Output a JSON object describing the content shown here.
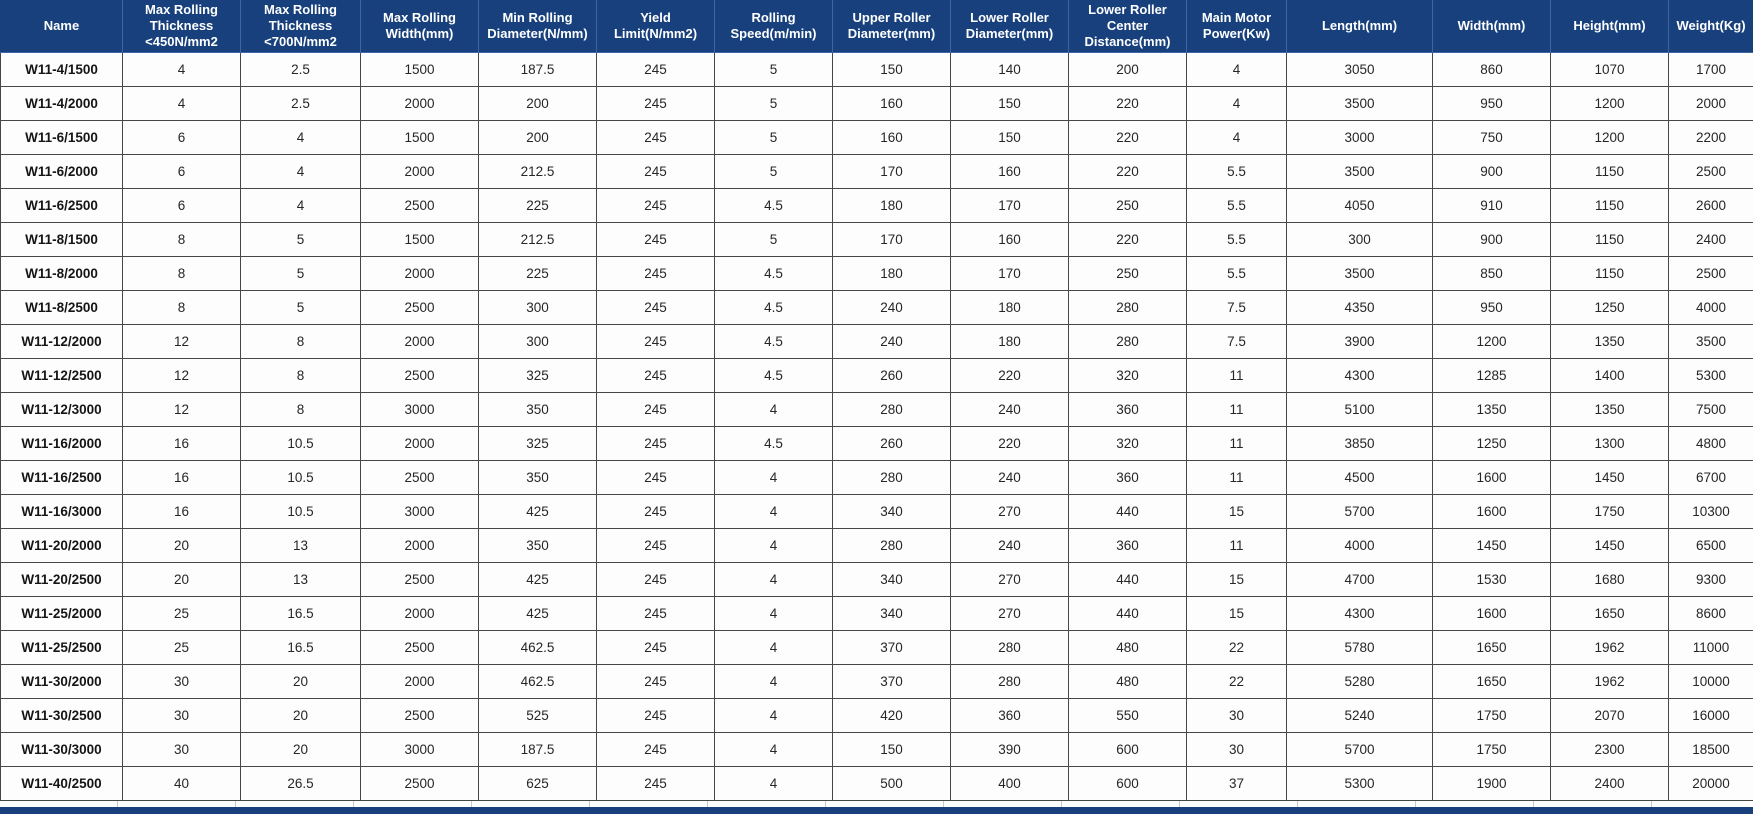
{
  "table": {
    "headers": [
      "Name",
      "Max Rolling Thickness <450N/mm2",
      "Max Rolling Thickness <700N/mm2",
      "Max Rolling Width(mm)",
      "Min Rolling Diameter(N/mm)",
      "Yield Limit(N/mm2)",
      "Rolling Speed(m/min)",
      "Upper Roller Diameter(mm)",
      "Lower Roller Diameter(mm)",
      "Lower Roller Center Distance(mm)",
      "Main Motor Power(Kw)",
      "Length(mm)",
      "Width(mm)",
      "Height(mm)",
      "Weight(Kg)"
    ],
    "rows": [
      [
        "W11-4/1500",
        "4",
        "2.5",
        "1500",
        "187.5",
        "245",
        "5",
        "150",
        "140",
        "200",
        "4",
        "3050",
        "860",
        "1070",
        "1700"
      ],
      [
        "W11-4/2000",
        "4",
        "2.5",
        "2000",
        "200",
        "245",
        "5",
        "160",
        "150",
        "220",
        "4",
        "3500",
        "950",
        "1200",
        "2000"
      ],
      [
        "W11-6/1500",
        "6",
        "4",
        "1500",
        "200",
        "245",
        "5",
        "160",
        "150",
        "220",
        "4",
        "3000",
        "750",
        "1200",
        "2200"
      ],
      [
        "W11-6/2000",
        "6",
        "4",
        "2000",
        "212.5",
        "245",
        "5",
        "170",
        "160",
        "220",
        "5.5",
        "3500",
        "900",
        "1150",
        "2500"
      ],
      [
        "W11-6/2500",
        "6",
        "4",
        "2500",
        "225",
        "245",
        "4.5",
        "180",
        "170",
        "250",
        "5.5",
        "4050",
        "910",
        "1150",
        "2600"
      ],
      [
        "W11-8/1500",
        "8",
        "5",
        "1500",
        "212.5",
        "245",
        "5",
        "170",
        "160",
        "220",
        "5.5",
        "300",
        "900",
        "1150",
        "2400"
      ],
      [
        "W11-8/2000",
        "8",
        "5",
        "2000",
        "225",
        "245",
        "4.5",
        "180",
        "170",
        "250",
        "5.5",
        "3500",
        "850",
        "1150",
        "2500"
      ],
      [
        "W11-8/2500",
        "8",
        "5",
        "2500",
        "300",
        "245",
        "4.5",
        "240",
        "180",
        "280",
        "7.5",
        "4350",
        "950",
        "1250",
        "4000"
      ],
      [
        "W11-12/2000",
        "12",
        "8",
        "2000",
        "300",
        "245",
        "4.5",
        "240",
        "180",
        "280",
        "7.5",
        "3900",
        "1200",
        "1350",
        "3500"
      ],
      [
        "W11-12/2500",
        "12",
        "8",
        "2500",
        "325",
        "245",
        "4.5",
        "260",
        "220",
        "320",
        "11",
        "4300",
        "1285",
        "1400",
        "5300"
      ],
      [
        "W11-12/3000",
        "12",
        "8",
        "3000",
        "350",
        "245",
        "4",
        "280",
        "240",
        "360",
        "11",
        "5100",
        "1350",
        "1350",
        "7500"
      ],
      [
        "W11-16/2000",
        "16",
        "10.5",
        "2000",
        "325",
        "245",
        "4.5",
        "260",
        "220",
        "320",
        "11",
        "3850",
        "1250",
        "1300",
        "4800"
      ],
      [
        "W11-16/2500",
        "16",
        "10.5",
        "2500",
        "350",
        "245",
        "4",
        "280",
        "240",
        "360",
        "11",
        "4500",
        "1600",
        "1450",
        "6700"
      ],
      [
        "W11-16/3000",
        "16",
        "10.5",
        "3000",
        "425",
        "245",
        "4",
        "340",
        "270",
        "440",
        "15",
        "5700",
        "1600",
        "1750",
        "10300"
      ],
      [
        "W11-20/2000",
        "20",
        "13",
        "2000",
        "350",
        "245",
        "4",
        "280",
        "240",
        "360",
        "11",
        "4000",
        "1450",
        "1450",
        "6500"
      ],
      [
        "W11-20/2500",
        "20",
        "13",
        "2500",
        "425",
        "245",
        "4",
        "340",
        "270",
        "440",
        "15",
        "4700",
        "1530",
        "1680",
        "9300"
      ],
      [
        "W11-25/2000",
        "25",
        "16.5",
        "2000",
        "425",
        "245",
        "4",
        "340",
        "270",
        "440",
        "15",
        "4300",
        "1600",
        "1650",
        "8600"
      ],
      [
        "W11-25/2500",
        "25",
        "16.5",
        "2500",
        "462.5",
        "245",
        "4",
        "370",
        "280",
        "480",
        "22",
        "5780",
        "1650",
        "1962",
        "11000"
      ],
      [
        "W11-30/2000",
        "30",
        "20",
        "2000",
        "462.5",
        "245",
        "4",
        "370",
        "280",
        "480",
        "22",
        "5280",
        "1650",
        "1962",
        "10000"
      ],
      [
        "W11-30/2500",
        "30",
        "20",
        "2500",
        "525",
        "245",
        "4",
        "420",
        "360",
        "550",
        "30",
        "5240",
        "1750",
        "2070",
        "16000"
      ],
      [
        "W11-30/3000",
        "30",
        "20",
        "3000",
        "187.5",
        "245",
        "4",
        "150",
        "390",
        "600",
        "30",
        "5700",
        "1750",
        "2300",
        "18500"
      ],
      [
        "W11-40/2500",
        "40",
        "26.5",
        "2500",
        "625",
        "245",
        "4",
        "500",
        "400",
        "600",
        "37",
        "5300",
        "1900",
        "2400",
        "20000"
      ]
    ]
  },
  "colors": {
    "header_bg": "#17407d",
    "header_text": "#ffffff",
    "header_divider": "#3c66a4",
    "body_border": "#474747",
    "body_text": "#262626",
    "bottom_bar": "#17407d"
  }
}
